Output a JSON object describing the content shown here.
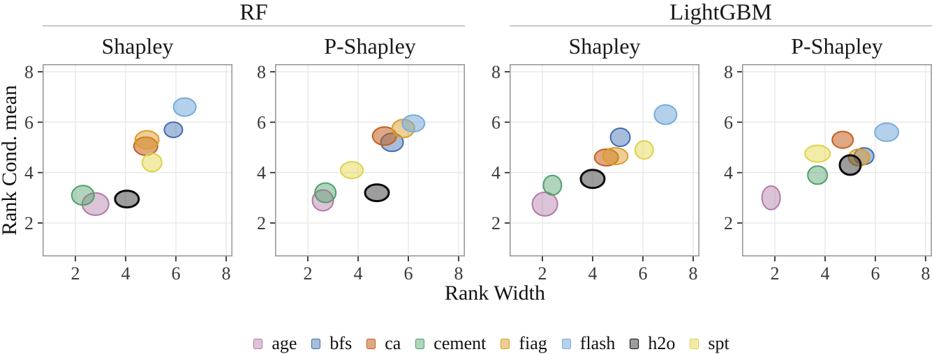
{
  "chart_data": {
    "type": "scatter",
    "title": "",
    "xlabel": "Rank Width",
    "ylabel": "Rank Cond. mean",
    "x_ticks": [
      2,
      4,
      6,
      8
    ],
    "y_ticks": [
      2,
      4,
      6,
      8
    ],
    "xlim": [
      0.7,
      8.25
    ],
    "ylim": [
      0.65,
      8.25
    ],
    "grid": true,
    "legend_position": "bottom",
    "marker_shape": "ellipse",
    "classes": [
      {
        "name": "age",
        "stroke": "#B279A8",
        "fill": "#B279A8",
        "fill_opacity": 0.45,
        "stroke_width": 2
      },
      {
        "name": "bfs",
        "stroke": "#3E6DB0",
        "fill": "#3E6DB0",
        "fill_opacity": 0.45,
        "stroke_width": 2
      },
      {
        "name": "ca",
        "stroke": "#C45F1D",
        "fill": "#C45F1D",
        "fill_opacity": 0.55,
        "stroke_width": 2
      },
      {
        "name": "cement",
        "stroke": "#4FA06A",
        "fill": "#4FA06A",
        "fill_opacity": 0.45,
        "stroke_width": 2
      },
      {
        "name": "fiag",
        "stroke": "#DB9D2C",
        "fill": "#DB9D2C",
        "fill_opacity": 0.5,
        "stroke_width": 2
      },
      {
        "name": "flash",
        "stroke": "#77ABDC",
        "fill": "#77ABDC",
        "fill_opacity": 0.55,
        "stroke_width": 2
      },
      {
        "name": "h2o",
        "stroke": "#0A0A0A",
        "fill": "#3C3C3C",
        "fill_opacity": 0.5,
        "stroke_width": 3
      },
      {
        "name": "spt",
        "stroke": "#DFD14C",
        "fill": "#E6DA52",
        "fill_opacity": 0.5,
        "stroke_width": 2
      }
    ],
    "groups": [
      {
        "label": "RF",
        "panels": [
          {
            "label": "Shapley",
            "points": [
              {
                "class": "age",
                "x": 2.8,
                "y": 2.75,
                "rx": 19,
                "ry": 16
              },
              {
                "class": "bfs",
                "x": 5.9,
                "y": 5.7,
                "rx": 13,
                "ry": 11
              },
              {
                "class": "ca",
                "x": 4.8,
                "y": 5.05,
                "rx": 17,
                "ry": 13
              },
              {
                "class": "cement",
                "x": 2.3,
                "y": 3.1,
                "rx": 16,
                "ry": 14
              },
              {
                "class": "fiag",
                "x": 4.85,
                "y": 5.3,
                "rx": 17,
                "ry": 13
              },
              {
                "class": "flash",
                "x": 6.35,
                "y": 6.6,
                "rx": 16,
                "ry": 13
              },
              {
                "class": "h2o",
                "x": 4.05,
                "y": 2.95,
                "rx": 17,
                "ry": 12
              },
              {
                "class": "spt",
                "x": 5.05,
                "y": 4.4,
                "rx": 14,
                "ry": 13
              }
            ]
          },
          {
            "label": "P-Shapley",
            "points": [
              {
                "class": "age",
                "x": 2.6,
                "y": 2.9,
                "rx": 15,
                "ry": 15
              },
              {
                "class": "bfs",
                "x": 5.35,
                "y": 5.2,
                "rx": 16,
                "ry": 13
              },
              {
                "class": "ca",
                "x": 5.05,
                "y": 5.45,
                "rx": 17,
                "ry": 13
              },
              {
                "class": "cement",
                "x": 2.7,
                "y": 3.2,
                "rx": 15,
                "ry": 14
              },
              {
                "class": "fiag",
                "x": 5.8,
                "y": 5.75,
                "rx": 16,
                "ry": 13
              },
              {
                "class": "flash",
                "x": 6.2,
                "y": 5.95,
                "rx": 16,
                "ry": 12
              },
              {
                "class": "h2o",
                "x": 4.75,
                "y": 3.2,
                "rx": 17,
                "ry": 12
              },
              {
                "class": "spt",
                "x": 3.75,
                "y": 4.1,
                "rx": 16,
                "ry": 12
              }
            ]
          }
        ]
      },
      {
        "label": "LightGBM",
        "panels": [
          {
            "label": "Shapley",
            "points": [
              {
                "class": "age",
                "x": 2.1,
                "y": 2.75,
                "rx": 18,
                "ry": 17
              },
              {
                "class": "bfs",
                "x": 5.1,
                "y": 5.4,
                "rx": 14,
                "ry": 13
              },
              {
                "class": "ca",
                "x": 4.55,
                "y": 4.6,
                "rx": 17,
                "ry": 12
              },
              {
                "class": "cement",
                "x": 2.4,
                "y": 3.5,
                "rx": 13,
                "ry": 14
              },
              {
                "class": "fiag",
                "x": 4.9,
                "y": 4.65,
                "rx": 18,
                "ry": 12
              },
              {
                "class": "flash",
                "x": 6.9,
                "y": 6.3,
                "rx": 16,
                "ry": 14
              },
              {
                "class": "h2o",
                "x": 4.0,
                "y": 3.75,
                "rx": 17,
                "ry": 13
              },
              {
                "class": "spt",
                "x": 6.05,
                "y": 4.9,
                "rx": 13,
                "ry": 13
              }
            ]
          },
          {
            "label": "P-Shapley",
            "points": [
              {
                "class": "age",
                "x": 1.85,
                "y": 3.0,
                "rx": 13,
                "ry": 17
              },
              {
                "class": "bfs",
                "x": 5.55,
                "y": 4.65,
                "rx": 14,
                "ry": 12
              },
              {
                "class": "ca",
                "x": 4.7,
                "y": 5.3,
                "rx": 15,
                "ry": 12
              },
              {
                "class": "cement",
                "x": 3.7,
                "y": 3.9,
                "rx": 14,
                "ry": 13
              },
              {
                "class": "fiag",
                "x": 5.35,
                "y": 4.6,
                "rx": 15,
                "ry": 12
              },
              {
                "class": "flash",
                "x": 6.45,
                "y": 5.6,
                "rx": 17,
                "ry": 13
              },
              {
                "class": "h2o",
                "x": 5.0,
                "y": 4.3,
                "rx": 15,
                "ry": 14
              },
              {
                "class": "spt",
                "x": 3.7,
                "y": 4.75,
                "rx": 18,
                "ry": 12
              }
            ]
          }
        ]
      }
    ],
    "style": {
      "grid_color": "#E8E8E8",
      "panel_border_color": "#999999",
      "tick_color": "#2F2F2F",
      "tick_label_color": "#3A3A3A",
      "strip_line_color": "#C9C9C9"
    }
  }
}
